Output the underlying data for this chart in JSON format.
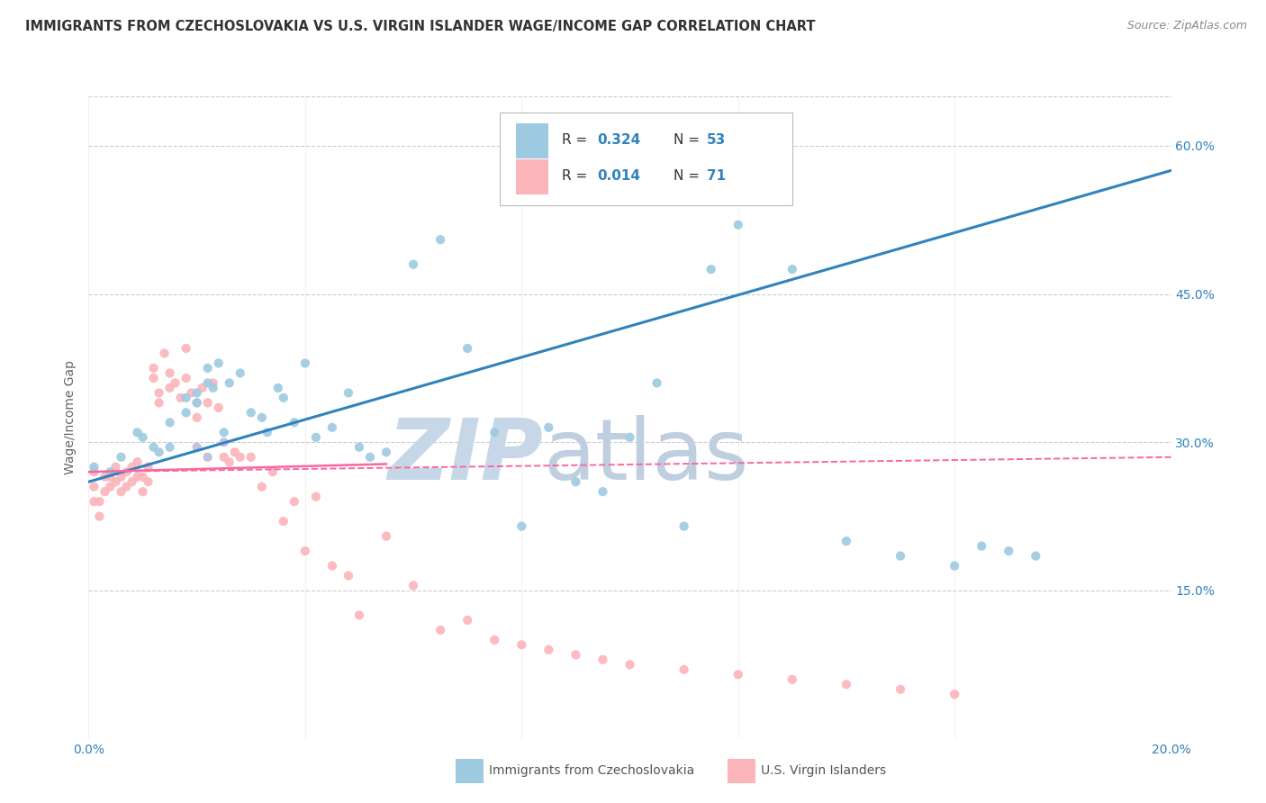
{
  "title": "IMMIGRANTS FROM CZECHOSLOVAKIA VS U.S. VIRGIN ISLANDER WAGE/INCOME GAP CORRELATION CHART",
  "source": "Source: ZipAtlas.com",
  "ylabel": "Wage/Income Gap",
  "y_ticks": [
    "15.0%",
    "30.0%",
    "45.0%",
    "60.0%"
  ],
  "legend_label1": "Immigrants from Czechoslovakia",
  "legend_label2": "U.S. Virgin Islanders",
  "legend_R1": "0.324",
  "legend_N1": "53",
  "legend_R2": "0.014",
  "legend_N2": "71",
  "color_blue": "#9ecae1",
  "color_blue_line": "#3182bd",
  "color_pink": "#fbb4b9",
  "color_pink_line": "#f768a1",
  "color_pink_dash": "#f768a1",
  "color_purple": "#bcbddc",
  "watermark_zip": "#c6d8e8",
  "watermark_atlas": "#c0cfe0",
  "grid_color": "#cccccc",
  "title_color": "#333333",
  "axis_color": "#3182bd",
  "blue_scatter_x": [
    0.001,
    0.004,
    0.006,
    0.009,
    0.01,
    0.012,
    0.013,
    0.015,
    0.015,
    0.018,
    0.018,
    0.02,
    0.02,
    0.022,
    0.022,
    0.023,
    0.024,
    0.025,
    0.026,
    0.028,
    0.03,
    0.032,
    0.033,
    0.035,
    0.036,
    0.038,
    0.04,
    0.042,
    0.045,
    0.048,
    0.05,
    0.052,
    0.055,
    0.06,
    0.065,
    0.07,
    0.075,
    0.08,
    0.085,
    0.09,
    0.095,
    0.1,
    0.105,
    0.11,
    0.115,
    0.12,
    0.13,
    0.14,
    0.15,
    0.16,
    0.165,
    0.17,
    0.175
  ],
  "blue_scatter_y": [
    0.275,
    0.27,
    0.285,
    0.31,
    0.305,
    0.295,
    0.29,
    0.32,
    0.295,
    0.33,
    0.345,
    0.35,
    0.34,
    0.36,
    0.375,
    0.355,
    0.38,
    0.31,
    0.36,
    0.37,
    0.33,
    0.325,
    0.31,
    0.355,
    0.345,
    0.32,
    0.38,
    0.305,
    0.315,
    0.35,
    0.295,
    0.285,
    0.29,
    0.48,
    0.505,
    0.395,
    0.31,
    0.215,
    0.315,
    0.26,
    0.25,
    0.305,
    0.36,
    0.215,
    0.475,
    0.52,
    0.475,
    0.2,
    0.185,
    0.175,
    0.195,
    0.19,
    0.185
  ],
  "pink_scatter_x": [
    0.001,
    0.001,
    0.001,
    0.002,
    0.002,
    0.003,
    0.003,
    0.004,
    0.004,
    0.005,
    0.005,
    0.006,
    0.006,
    0.007,
    0.007,
    0.008,
    0.008,
    0.009,
    0.009,
    0.01,
    0.01,
    0.011,
    0.011,
    0.012,
    0.012,
    0.013,
    0.013,
    0.014,
    0.015,
    0.015,
    0.016,
    0.017,
    0.018,
    0.018,
    0.019,
    0.02,
    0.02,
    0.021,
    0.022,
    0.023,
    0.024,
    0.025,
    0.026,
    0.027,
    0.028,
    0.03,
    0.032,
    0.034,
    0.036,
    0.038,
    0.04,
    0.042,
    0.045,
    0.048,
    0.05,
    0.055,
    0.06,
    0.065,
    0.07,
    0.075,
    0.08,
    0.085,
    0.09,
    0.095,
    0.1,
    0.11,
    0.12,
    0.13,
    0.14,
    0.15,
    0.16
  ],
  "pink_scatter_y": [
    0.27,
    0.255,
    0.24,
    0.24,
    0.225,
    0.265,
    0.25,
    0.265,
    0.255,
    0.275,
    0.26,
    0.265,
    0.25,
    0.27,
    0.255,
    0.275,
    0.26,
    0.28,
    0.265,
    0.265,
    0.25,
    0.275,
    0.26,
    0.365,
    0.375,
    0.35,
    0.34,
    0.39,
    0.37,
    0.355,
    0.36,
    0.345,
    0.395,
    0.365,
    0.35,
    0.34,
    0.325,
    0.355,
    0.34,
    0.36,
    0.335,
    0.285,
    0.28,
    0.29,
    0.285,
    0.285,
    0.255,
    0.27,
    0.22,
    0.24,
    0.19,
    0.245,
    0.175,
    0.165,
    0.125,
    0.205,
    0.155,
    0.11,
    0.12,
    0.1,
    0.095,
    0.09,
    0.085,
    0.08,
    0.075,
    0.07,
    0.065,
    0.06,
    0.055,
    0.05,
    0.045
  ],
  "purple_scatter_x": [
    0.02,
    0.022,
    0.025
  ],
  "purple_scatter_y": [
    0.295,
    0.285,
    0.3
  ],
  "blue_line_x": [
    0.0,
    0.2
  ],
  "blue_line_y": [
    0.26,
    0.575
  ],
  "pink_solid_line_x": [
    0.0,
    0.055
  ],
  "pink_solid_line_y": [
    0.27,
    0.278
  ],
  "pink_dash_line_x": [
    0.0,
    0.2
  ],
  "pink_dash_line_y": [
    0.27,
    0.285
  ],
  "xlim": [
    0.0,
    0.2
  ],
  "ylim": [
    0.0,
    0.65
  ],
  "y_tick_vals": [
    0.15,
    0.3,
    0.45,
    0.6
  ],
  "x_tick_positions": [
    0.0,
    0.04,
    0.08,
    0.12,
    0.16,
    0.2
  ],
  "x_tick_labels": [
    "0.0%",
    "",
    "",
    "",
    "",
    "20.0%"
  ]
}
